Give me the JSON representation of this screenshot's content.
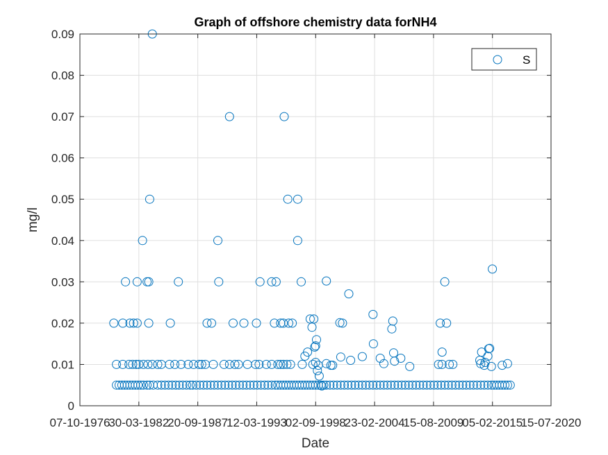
{
  "chart_data": {
    "type": "scatter",
    "title": "Graph of offshore chemistry data forNH4",
    "xlabel": "Date",
    "ylabel": "mg/l",
    "xlim": [
      "1976-10-07",
      "2020-07-15"
    ],
    "ylim": [
      0,
      0.09
    ],
    "x_ticks": [
      "1976-10-07",
      "1982-03-30",
      "1987-09-20",
      "1993-03-12",
      "1998-09-02",
      "2004-02-23",
      "2009-08-15",
      "2015-02-05",
      "2020-07-15"
    ],
    "x_tick_labels": [
      "07-10-1976",
      "30-03-1982",
      "20-09-1987",
      "12-03-1993",
      "02-09-1998",
      "23-02-2004",
      "15-08-2009",
      "05-02-2015",
      "15-07-2020"
    ],
    "y_ticks": [
      0,
      0.01,
      0.02,
      0.03,
      0.04,
      0.05,
      0.06,
      0.07,
      0.08,
      0.09
    ],
    "y_tick_labels": [
      "0",
      "0.01",
      "0.02",
      "0.03",
      "0.04",
      "0.05",
      "0.06",
      "0.07",
      "0.08",
      "0.09"
    ],
    "grid": true,
    "legend": "top-right",
    "marker": "open-circle",
    "color": "#0072bd",
    "series": [
      {
        "name": "S",
        "points": [
          [
            "1980-03-01",
            0.005
          ],
          [
            "1980-06-01",
            0.005
          ],
          [
            "1980-09-01",
            0.005
          ],
          [
            "1980-12-01",
            0.005
          ],
          [
            "1981-03-01",
            0.005
          ],
          [
            "1981-06-01",
            0.005
          ],
          [
            "1981-09-01",
            0.005
          ],
          [
            "1981-12-01",
            0.005
          ],
          [
            "1982-03-01",
            0.005
          ],
          [
            "1982-06-01",
            0.005
          ],
          [
            "1982-09-01",
            0.005
          ],
          [
            "1983-01-01",
            0.005
          ],
          [
            "1983-04-01",
            0.005
          ],
          [
            "1983-08-01",
            0.005
          ],
          [
            "1984-01-01",
            0.005
          ],
          [
            "1984-05-01",
            0.005
          ],
          [
            "1984-09-01",
            0.005
          ],
          [
            "1985-01-01",
            0.005
          ],
          [
            "1985-05-01",
            0.005
          ],
          [
            "1985-09-01",
            0.005
          ],
          [
            "1986-01-01",
            0.005
          ],
          [
            "1986-05-01",
            0.005
          ],
          [
            "1986-09-01",
            0.005
          ],
          [
            "1987-01-01",
            0.005
          ],
          [
            "1987-04-01",
            0.005
          ],
          [
            "1987-08-01",
            0.005
          ],
          [
            "1987-12-01",
            0.005
          ],
          [
            "1988-04-01",
            0.005
          ],
          [
            "1988-08-01",
            0.005
          ],
          [
            "1988-12-01",
            0.005
          ],
          [
            "1989-04-01",
            0.005
          ],
          [
            "1989-08-01",
            0.005
          ],
          [
            "1989-12-01",
            0.005
          ],
          [
            "1990-04-01",
            0.005
          ],
          [
            "1990-08-01",
            0.005
          ],
          [
            "1990-12-01",
            0.005
          ],
          [
            "1991-04-01",
            0.005
          ],
          [
            "1991-08-01",
            0.005
          ],
          [
            "1991-12-01",
            0.005
          ],
          [
            "1992-04-01",
            0.005
          ],
          [
            "1992-08-01",
            0.005
          ],
          [
            "1992-12-01",
            0.005
          ],
          [
            "1993-04-01",
            0.005
          ],
          [
            "1993-08-01",
            0.005
          ],
          [
            "1993-12-01",
            0.005
          ],
          [
            "1994-04-01",
            0.005
          ],
          [
            "1994-08-01",
            0.005
          ],
          [
            "1994-12-01",
            0.005
          ],
          [
            "1995-03-01",
            0.005
          ],
          [
            "1995-06-01",
            0.005
          ],
          [
            "1995-09-01",
            0.005
          ],
          [
            "1995-12-01",
            0.005
          ],
          [
            "1996-03-01",
            0.005
          ],
          [
            "1996-06-01",
            0.005
          ],
          [
            "1996-09-01",
            0.005
          ],
          [
            "1996-12-01",
            0.005
          ],
          [
            "1997-03-01",
            0.005
          ],
          [
            "1997-06-01",
            0.005
          ],
          [
            "1997-09-01",
            0.005
          ],
          [
            "1997-12-01",
            0.005
          ],
          [
            "1998-03-01",
            0.005
          ],
          [
            "1998-06-01",
            0.005
          ],
          [
            "1998-09-01",
            0.005
          ],
          [
            "1998-12-01",
            0.005
          ],
          [
            "1999-03-01",
            0.005
          ],
          [
            "1999-06-01",
            0.005
          ],
          [
            "1999-09-01",
            0.005
          ],
          [
            "2000-01-01",
            0.005
          ],
          [
            "2000-05-01",
            0.005
          ],
          [
            "2000-09-01",
            0.005
          ],
          [
            "2001-01-01",
            0.005
          ],
          [
            "2001-05-01",
            0.005
          ],
          [
            "2001-09-01",
            0.005
          ],
          [
            "2002-01-01",
            0.005
          ],
          [
            "2002-05-01",
            0.005
          ],
          [
            "2002-09-01",
            0.005
          ],
          [
            "2003-01-01",
            0.005
          ],
          [
            "2003-05-01",
            0.005
          ],
          [
            "2003-09-01",
            0.005
          ],
          [
            "2004-01-01",
            0.005
          ],
          [
            "2004-05-01",
            0.005
          ],
          [
            "2004-09-01",
            0.005
          ],
          [
            "2005-01-01",
            0.005
          ],
          [
            "2005-05-01",
            0.005
          ],
          [
            "2005-09-01",
            0.005
          ],
          [
            "2006-01-01",
            0.005
          ],
          [
            "2006-05-01",
            0.005
          ],
          [
            "2006-09-01",
            0.005
          ],
          [
            "2007-01-01",
            0.005
          ],
          [
            "2007-05-01",
            0.005
          ],
          [
            "2007-09-01",
            0.005
          ],
          [
            "2008-01-01",
            0.005
          ],
          [
            "2008-05-01",
            0.005
          ],
          [
            "2008-09-01",
            0.005
          ],
          [
            "2009-01-01",
            0.005
          ],
          [
            "2009-05-01",
            0.005
          ],
          [
            "2009-09-01",
            0.005
          ],
          [
            "2010-01-01",
            0.005
          ],
          [
            "2010-05-01",
            0.005
          ],
          [
            "2010-09-01",
            0.005
          ],
          [
            "2011-01-01",
            0.005
          ],
          [
            "2011-05-01",
            0.005
          ],
          [
            "2011-09-01",
            0.005
          ],
          [
            "2012-01-01",
            0.005
          ],
          [
            "2012-05-01",
            0.005
          ],
          [
            "2012-09-01",
            0.005
          ],
          [
            "2013-01-01",
            0.005
          ],
          [
            "2013-05-01",
            0.005
          ],
          [
            "2013-09-01",
            0.005
          ],
          [
            "2014-01-01",
            0.005
          ],
          [
            "2014-05-01",
            0.005
          ],
          [
            "2014-09-01",
            0.005
          ],
          [
            "2015-01-01",
            0.005
          ],
          [
            "2015-04-01",
            0.005
          ],
          [
            "2015-07-01",
            0.005
          ],
          [
            "2015-10-01",
            0.005
          ],
          [
            "2016-01-01",
            0.005
          ],
          [
            "2016-04-01",
            0.005
          ],
          [
            "2016-07-01",
            0.005
          ],
          [
            "2016-10-01",
            0.005
          ],
          [
            "1980-03-01",
            0.01
          ],
          [
            "1980-10-01",
            0.01
          ],
          [
            "1981-05-01",
            0.01
          ],
          [
            "1981-09-01",
            0.01
          ],
          [
            "1982-01-01",
            0.01
          ],
          [
            "1982-04-01",
            0.01
          ],
          [
            "1982-09-01",
            0.01
          ],
          [
            "1983-02-01",
            0.01
          ],
          [
            "1983-07-01",
            0.01
          ],
          [
            "1984-01-01",
            0.01
          ],
          [
            "1984-05-01",
            0.01
          ],
          [
            "1985-02-01",
            0.01
          ],
          [
            "1985-08-01",
            0.01
          ],
          [
            "1986-03-01",
            0.01
          ],
          [
            "1986-11-01",
            0.01
          ],
          [
            "1987-05-01",
            0.01
          ],
          [
            "1987-11-01",
            0.01
          ],
          [
            "1988-02-01",
            0.01
          ],
          [
            "1988-06-01",
            0.01
          ],
          [
            "1989-03-01",
            0.01
          ],
          [
            "1990-03-01",
            0.01
          ],
          [
            "1990-09-01",
            0.01
          ],
          [
            "1991-03-01",
            0.01
          ],
          [
            "1991-07-01",
            0.01
          ],
          [
            "1992-05-01",
            0.01
          ],
          [
            "1993-02-01",
            0.01
          ],
          [
            "1993-06-01",
            0.01
          ],
          [
            "1994-02-01",
            0.01
          ],
          [
            "1994-08-01",
            0.01
          ],
          [
            "1995-03-01",
            0.01
          ],
          [
            "1995-06-01",
            0.01
          ],
          [
            "1995-09-01",
            0.01
          ],
          [
            "1996-01-01",
            0.01
          ],
          [
            "1996-05-01",
            0.01
          ],
          [
            "1997-06-01",
            0.01
          ],
          [
            "1998-06-01",
            0.01
          ],
          [
            "1998-09-01",
            0.0105
          ],
          [
            "1998-12-01",
            0.0098
          ],
          [
            "1999-09-01",
            0.0102
          ],
          [
            "2000-04-01",
            0.0098
          ],
          [
            "2010-02-01",
            0.01
          ],
          [
            "2010-06-01",
            0.01
          ],
          [
            "2011-02-01",
            0.01
          ],
          [
            "2011-06-01",
            0.01
          ],
          [
            "2014-01-01",
            0.0102
          ],
          [
            "2014-05-01",
            0.0098
          ],
          [
            "2015-01-01",
            0.0095
          ],
          [
            "2016-01-01",
            0.0098
          ],
          [
            "2016-07-01",
            0.0102
          ],
          [
            "1979-12-01",
            0.02
          ],
          [
            "1980-10-01",
            0.02
          ],
          [
            "1981-06-01",
            0.02
          ],
          [
            "1981-10-01",
            0.02
          ],
          [
            "1982-02-01",
            0.02
          ],
          [
            "1983-03-01",
            0.02
          ],
          [
            "1985-03-01",
            0.02
          ],
          [
            "1988-08-01",
            0.02
          ],
          [
            "1989-01-01",
            0.02
          ],
          [
            "1991-01-01",
            0.02
          ],
          [
            "1992-01-01",
            0.02
          ],
          [
            "1993-03-01",
            0.02
          ],
          [
            "1994-11-01",
            0.02
          ],
          [
            "1995-06-01",
            0.02
          ],
          [
            "1995-09-01",
            0.02
          ],
          [
            "1996-03-01",
            0.02
          ],
          [
            "1996-07-01",
            0.02
          ],
          [
            "2001-03-01",
            0.02
          ],
          [
            "2010-04-01",
            0.02
          ],
          [
            "2010-11-01",
            0.02
          ],
          [
            "1981-01-01",
            0.03
          ],
          [
            "1982-02-01",
            0.03
          ],
          [
            "1983-01-01",
            0.03
          ],
          [
            "1983-03-01",
            0.03
          ],
          [
            "1985-12-01",
            0.03
          ],
          [
            "1989-09-01",
            0.03
          ],
          [
            "1993-07-01",
            0.03
          ],
          [
            "1994-08-01",
            0.03
          ],
          [
            "1995-01-01",
            0.03
          ],
          [
            "1997-05-01",
            0.03
          ],
          [
            "2010-09-01",
            0.03
          ],
          [
            "1982-08-01",
            0.04
          ],
          [
            "1989-08-01",
            0.04
          ],
          [
            "1997-01-01",
            0.04
          ],
          [
            "1983-04-01",
            0.05
          ],
          [
            "1996-02-01",
            0.05
          ],
          [
            "1997-01-01",
            0.05
          ],
          [
            "1983-07-01",
            0.09
          ],
          [
            "1990-09-01",
            0.07
          ],
          [
            "1995-10-01",
            0.07
          ],
          [
            "1997-09-01",
            0.012
          ],
          [
            "1997-12-01",
            0.013
          ],
          [
            "1998-03-01",
            0.021
          ],
          [
            "1998-05-01",
            0.019
          ],
          [
            "1998-07-01",
            0.021
          ],
          [
            "1998-08-01",
            0.0142
          ],
          [
            "1998-09-01",
            0.0145
          ],
          [
            "1998-10-01",
            0.016
          ],
          [
            "1998-11-01",
            0.0085
          ],
          [
            "1999-01-01",
            0.0072
          ],
          [
            "1999-04-01",
            0.0048
          ],
          [
            "1999-09-01",
            0.0302
          ],
          [
            "2000-02-01",
            0.0098
          ],
          [
            "2000-12-01",
            0.0201
          ],
          [
            "2001-01-01",
            0.0118
          ],
          [
            "2001-10-01",
            0.0271
          ],
          [
            "2001-12-01",
            0.011
          ],
          [
            "2003-01-01",
            0.0119
          ],
          [
            "2004-01-01",
            0.0221
          ],
          [
            "2004-01-15",
            0.015
          ],
          [
            "2004-09-01",
            0.0115
          ],
          [
            "2005-01-01",
            0.0102
          ],
          [
            "2005-10-01",
            0.0186
          ],
          [
            "2005-11-01",
            0.0205
          ],
          [
            "2005-12-01",
            0.0128
          ],
          [
            "2006-01-01",
            0.0108
          ],
          [
            "2006-08-01",
            0.0115
          ],
          [
            "2007-06-01",
            0.0095
          ],
          [
            "2010-06-01",
            0.013
          ],
          [
            "2013-12-01",
            0.011
          ],
          [
            "2014-02-01",
            0.013
          ],
          [
            "2014-06-01",
            0.0105
          ],
          [
            "2014-09-01",
            0.012
          ],
          [
            "2014-10-01",
            0.0138
          ],
          [
            "2014-11-01",
            0.0139
          ],
          [
            "2015-02-01",
            0.0331
          ]
        ]
      }
    ]
  }
}
